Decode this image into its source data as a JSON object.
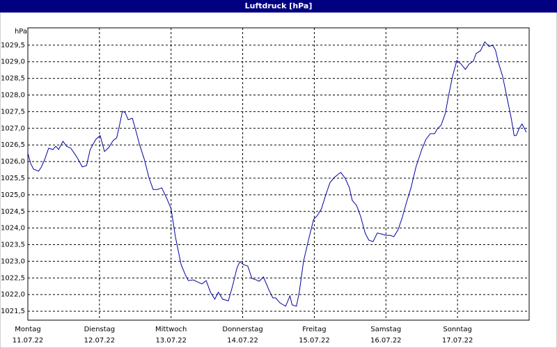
{
  "chart_data": {
    "type": "line",
    "title": "Luftdruck [hPa]",
    "y_label": "hPa",
    "color": "#0000a0",
    "grid": true,
    "xlim": [
      0,
      7
    ],
    "ylim": [
      1021.23,
      1030.02
    ],
    "xticks": [
      {
        "value": 0,
        "label": "Montag",
        "date": "11.07.22"
      },
      {
        "value": 1,
        "label": "Dienstag",
        "date": "12.07.22"
      },
      {
        "value": 2,
        "label": "Mittwoch",
        "date": "13.07.22"
      },
      {
        "value": 3,
        "label": "Donnerstag",
        "date": "14.07.22"
      },
      {
        "value": 4,
        "label": "Freitag",
        "date": "15.07.22"
      },
      {
        "value": 5,
        "label": "Samstag",
        "date": "16.07.22"
      },
      {
        "value": 6,
        "label": "Sonntag",
        "date": "17.07.22"
      }
    ],
    "yticks": [
      {
        "value": 1021.5,
        "label": "1021,5"
      },
      {
        "value": 1022,
        "label": "1022,0"
      },
      {
        "value": 1022.5,
        "label": "1022,5"
      },
      {
        "value": 1023,
        "label": "1023,0"
      },
      {
        "value": 1023.5,
        "label": "1023,5"
      },
      {
        "value": 1024,
        "label": "1024,0"
      },
      {
        "value": 1024.5,
        "label": "1024,5"
      },
      {
        "value": 1025,
        "label": "1025,0"
      },
      {
        "value": 1025.5,
        "label": "1025,5"
      },
      {
        "value": 1026,
        "label": "1026,0"
      },
      {
        "value": 1026.5,
        "label": "1026,5"
      },
      {
        "value": 1027,
        "label": "1027,0"
      },
      {
        "value": 1027.5,
        "label": "1027,5"
      },
      {
        "value": 1028,
        "label": "1028,0"
      },
      {
        "value": 1028.5,
        "label": "1028,5"
      },
      {
        "value": 1029,
        "label": "1029,0"
      },
      {
        "value": 1029.5,
        "label": "1029,5"
      }
    ],
    "x": [
      0,
      0.04,
      0.08,
      0.15,
      0.19,
      0.24,
      0.29,
      0.35,
      0.39,
      0.43,
      0.49,
      0.54,
      0.6,
      0.68,
      0.76,
      0.82,
      0.87,
      0.95,
      1.01,
      1.07,
      1.13,
      1.19,
      1.24,
      1.28,
      1.32,
      1.36,
      1.4,
      1.46,
      1.5,
      1.56,
      1.63,
      1.69,
      1.75,
      1.81,
      1.87,
      1.94,
      2.0,
      2.06,
      2.1,
      2.14,
      2.2,
      2.24,
      2.31,
      2.37,
      2.43,
      2.49,
      2.55,
      2.61,
      2.66,
      2.72,
      2.8,
      2.86,
      2.92,
      2.96,
      3.01,
      3.07,
      3.13,
      3.19,
      3.23,
      3.29,
      3.36,
      3.42,
      3.46,
      3.52,
      3.6,
      3.66,
      3.69,
      3.75,
      3.79,
      3.85,
      3.93,
      3.99,
      4.04,
      4.1,
      4.16,
      4.22,
      4.28,
      4.34,
      4.37,
      4.43,
      4.49,
      4.53,
      4.59,
      4.65,
      4.71,
      4.76,
      4.82,
      4.88,
      4.94,
      5.0,
      5.06,
      5.11,
      5.17,
      5.23,
      5.29,
      5.35,
      5.42,
      5.5,
      5.56,
      5.62,
      5.68,
      5.72,
      5.77,
      5.83,
      5.87,
      5.93,
      5.99,
      6.05,
      6.11,
      6.16,
      6.22,
      6.26,
      6.32,
      6.38,
      6.44,
      6.49,
      6.53,
      6.57,
      6.63,
      6.69,
      6.75,
      6.79,
      6.82,
      6.86,
      6.9,
      6.94,
      6.96
    ],
    "values": [
      1026.25,
      1025.94,
      1025.77,
      1025.71,
      1025.84,
      1026.09,
      1026.4,
      1026.36,
      1026.46,
      1026.36,
      1026.61,
      1026.46,
      1026.4,
      1026.15,
      1025.84,
      1025.88,
      1026.36,
      1026.67,
      1026.78,
      1026.3,
      1026.42,
      1026.63,
      1026.71,
      1027.09,
      1027.51,
      1027.47,
      1027.26,
      1027.3,
      1026.99,
      1026.51,
      1026.04,
      1025.52,
      1025.16,
      1025.16,
      1025.21,
      1024.89,
      1024.58,
      1023.74,
      1023.32,
      1022.9,
      1022.59,
      1022.42,
      1022.44,
      1022.38,
      1022.32,
      1022.42,
      1022.07,
      1021.86,
      1022.07,
      1021.86,
      1021.81,
      1022.27,
      1022.8,
      1022.99,
      1022.9,
      1022.86,
      1022.48,
      1022.44,
      1022.4,
      1022.53,
      1022.17,
      1021.9,
      1021.9,
      1021.75,
      1021.65,
      1021.96,
      1021.69,
      1021.65,
      1022.07,
      1023.01,
      1023.74,
      1024.26,
      1024.37,
      1024.58,
      1025.0,
      1025.37,
      1025.52,
      1025.63,
      1025.67,
      1025.5,
      1025.21,
      1024.83,
      1024.68,
      1024.33,
      1023.85,
      1023.64,
      1023.59,
      1023.85,
      1023.82,
      1023.78,
      1023.78,
      1023.74,
      1023.95,
      1024.33,
      1024.79,
      1025.21,
      1025.84,
      1026.36,
      1026.67,
      1026.84,
      1026.84,
      1026.99,
      1027.09,
      1027.45,
      1027.93,
      1028.56,
      1029.04,
      1028.93,
      1028.77,
      1028.93,
      1029.02,
      1029.25,
      1029.33,
      1029.6,
      1029.46,
      1029.5,
      1029.35,
      1028.98,
      1028.56,
      1027.93,
      1027.3,
      1026.78,
      1026.78,
      1026.99,
      1027.13,
      1026.97,
      1026.88
    ]
  }
}
